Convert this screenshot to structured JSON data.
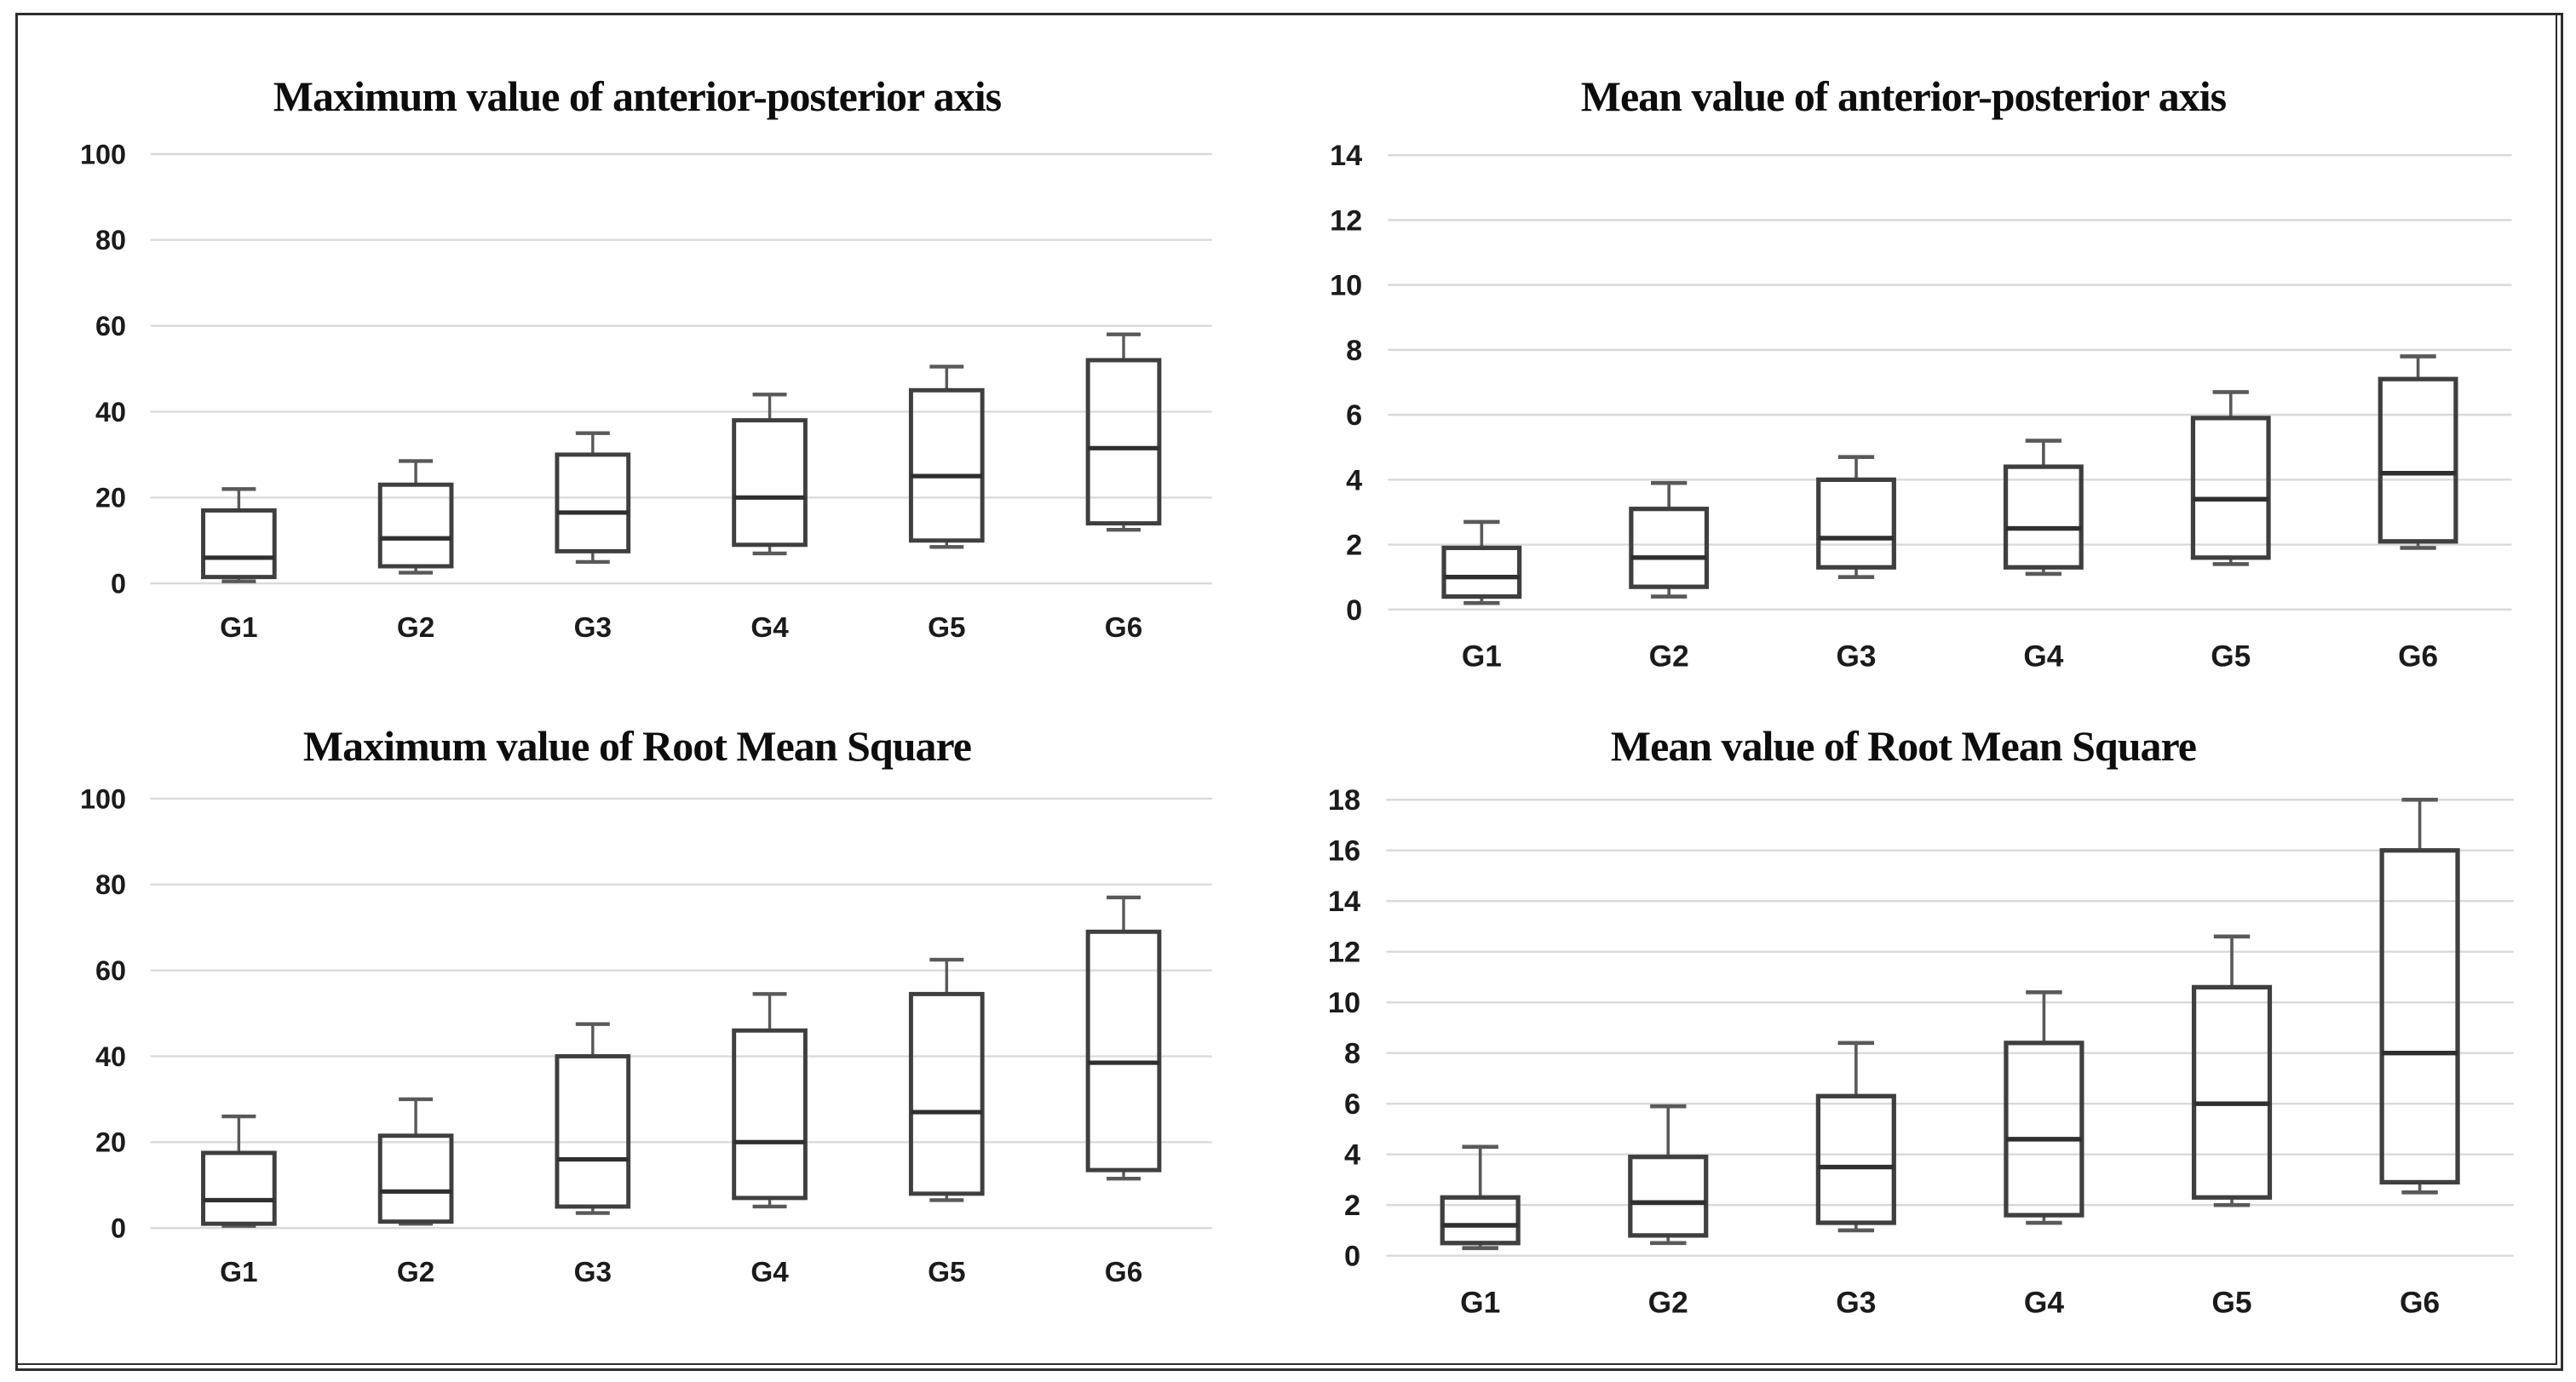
{
  "figure": {
    "background": "#ffffff",
    "frame_color": "#2e2e2e",
    "gridline_color": "#d9d9d9",
    "box_stroke": "#3f3f3f",
    "box_fill": "none",
    "median_color": "#2f2f2f",
    "whisker_color": "#595959",
    "label_color": "#1b1b1b"
  },
  "chart_data": [
    {
      "type": "box",
      "title": "Maximum value of anterior-posterior axis",
      "categories": [
        "G1",
        "G2",
        "G3",
        "G4",
        "G5",
        "G6"
      ],
      "ylim": [
        0,
        100
      ],
      "yticks": [
        0,
        20,
        40,
        60,
        80,
        100
      ],
      "grid": true,
      "legend": "none",
      "boxes": [
        {
          "category": "G1",
          "whisker_low": 0.5,
          "q1": 1.5,
          "median": 6,
          "q3": 17,
          "whisker_high": 22
        },
        {
          "category": "G2",
          "whisker_low": 2.5,
          "q1": 4,
          "median": 10.5,
          "q3": 23,
          "whisker_high": 28.5
        },
        {
          "category": "G3",
          "whisker_low": 5,
          "q1": 7.5,
          "median": 16.5,
          "q3": 30,
          "whisker_high": 35
        },
        {
          "category": "G4",
          "whisker_low": 7,
          "q1": 9,
          "median": 20,
          "q3": 38,
          "whisker_high": 44
        },
        {
          "category": "G5",
          "whisker_low": 8.5,
          "q1": 10,
          "median": 25,
          "q3": 45,
          "whisker_high": 50.5
        },
        {
          "category": "G6",
          "whisker_low": 12.5,
          "q1": 14,
          "median": 31.5,
          "q3": 52,
          "whisker_high": 58
        }
      ]
    },
    {
      "type": "box",
      "title": "Mean value of anterior-posterior axis",
      "categories": [
        "G1",
        "G2",
        "G3",
        "G4",
        "G5",
        "G6"
      ],
      "ylim": [
        0,
        14
      ],
      "yticks": [
        0,
        2,
        4,
        6,
        8,
        10,
        12,
        14
      ],
      "grid": true,
      "legend": "none",
      "boxes": [
        {
          "category": "G1",
          "whisker_low": 0.2,
          "q1": 0.4,
          "median": 1.0,
          "q3": 1.9,
          "whisker_high": 2.7
        },
        {
          "category": "G2",
          "whisker_low": 0.4,
          "q1": 0.7,
          "median": 1.6,
          "q3": 3.1,
          "whisker_high": 3.9
        },
        {
          "category": "G3",
          "whisker_low": 1.0,
          "q1": 1.3,
          "median": 2.2,
          "q3": 4.0,
          "whisker_high": 4.7
        },
        {
          "category": "G4",
          "whisker_low": 1.1,
          "q1": 1.3,
          "median": 2.5,
          "q3": 4.4,
          "whisker_high": 5.2
        },
        {
          "category": "G5",
          "whisker_low": 1.4,
          "q1": 1.6,
          "median": 3.4,
          "q3": 5.9,
          "whisker_high": 6.7
        },
        {
          "category": "G6",
          "whisker_low": 1.9,
          "q1": 2.1,
          "median": 4.2,
          "q3": 7.1,
          "whisker_high": 7.8
        }
      ]
    },
    {
      "type": "box",
      "title": "Maximum value of Root Mean Square",
      "categories": [
        "G1",
        "G2",
        "G3",
        "G4",
        "G5",
        "G6"
      ],
      "ylim": [
        0,
        100
      ],
      "yticks": [
        0,
        20,
        40,
        60,
        80,
        100
      ],
      "grid": true,
      "legend": "none",
      "boxes": [
        {
          "category": "G1",
          "whisker_low": 0.5,
          "q1": 1,
          "median": 6.5,
          "q3": 17.5,
          "whisker_high": 26
        },
        {
          "category": "G2",
          "whisker_low": 1,
          "q1": 1.5,
          "median": 8.5,
          "q3": 21.5,
          "whisker_high": 30
        },
        {
          "category": "G3",
          "whisker_low": 3.5,
          "q1": 5,
          "median": 16,
          "q3": 40,
          "whisker_high": 47.5
        },
        {
          "category": "G4",
          "whisker_low": 5,
          "q1": 7,
          "median": 20,
          "q3": 46,
          "whisker_high": 54.5
        },
        {
          "category": "G5",
          "whisker_low": 6.5,
          "q1": 8,
          "median": 27,
          "q3": 54.5,
          "whisker_high": 62.5
        },
        {
          "category": "G6",
          "whisker_low": 11.5,
          "q1": 13.5,
          "median": 38.5,
          "q3": 69,
          "whisker_high": 77
        }
      ]
    },
    {
      "type": "box",
      "title": "Mean value of Root Mean Square",
      "categories": [
        "G1",
        "G2",
        "G3",
        "G4",
        "G5",
        "G6"
      ],
      "ylim": [
        0,
        18
      ],
      "yticks": [
        0,
        2,
        4,
        6,
        8,
        10,
        12,
        14,
        16,
        18
      ],
      "grid": true,
      "legend": "none",
      "boxes": [
        {
          "category": "G1",
          "whisker_low": 0.3,
          "q1": 0.5,
          "median": 1.2,
          "q3": 2.3,
          "whisker_high": 4.3
        },
        {
          "category": "G2",
          "whisker_low": 0.5,
          "q1": 0.8,
          "median": 2.1,
          "q3": 3.9,
          "whisker_high": 5.9
        },
        {
          "category": "G3",
          "whisker_low": 1.0,
          "q1": 1.3,
          "median": 3.5,
          "q3": 6.3,
          "whisker_high": 8.4
        },
        {
          "category": "G4",
          "whisker_low": 1.3,
          "q1": 1.6,
          "median": 4.6,
          "q3": 8.4,
          "whisker_high": 10.4
        },
        {
          "category": "G5",
          "whisker_low": 2.0,
          "q1": 2.3,
          "median": 6.0,
          "q3": 10.6,
          "whisker_high": 12.6
        },
        {
          "category": "G6",
          "whisker_low": 2.5,
          "q1": 2.9,
          "median": 8.0,
          "q3": 16.0,
          "whisker_high": 18.0
        }
      ]
    }
  ]
}
